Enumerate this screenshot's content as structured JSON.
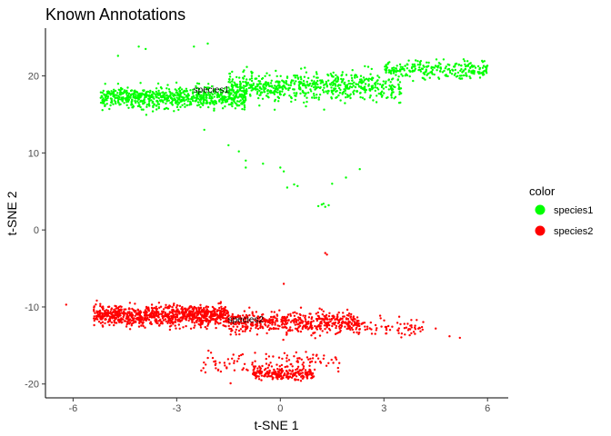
{
  "chart_data": {
    "type": "scatter",
    "title": "Known Annotations",
    "xlabel": "t-SNE 1",
    "ylabel": "t-SNE 2",
    "xlim": [
      -6.8,
      6.6
    ],
    "ylim": [
      -21.8,
      26.2
    ],
    "x_ticks": [
      -6,
      -3,
      0,
      3,
      6
    ],
    "y_ticks": [
      -20,
      -10,
      0,
      10,
      20
    ],
    "x_tick_labels": [
      "-6",
      "-3",
      "0",
      "3",
      "6"
    ],
    "y_tick_labels": [
      "-20",
      "-10",
      "0",
      "10",
      "20"
    ],
    "grid": false,
    "legend": {
      "title": "color",
      "position": "right",
      "entries": [
        {
          "label": "species1",
          "color": "#00ff00"
        },
        {
          "label": "species2",
          "color": "#ff0000"
        }
      ]
    },
    "annotations": [
      {
        "text": "species1",
        "x": -2.0,
        "y": 17.8
      },
      {
        "text": "species2",
        "x": -1.0,
        "y": -12.0
      }
    ],
    "series": [
      {
        "name": "species1",
        "color": "#00ff00",
        "clusters": [
          {
            "n": 700,
            "x_range": [
              -5.2,
              -1.0
            ],
            "y_center": 17.2,
            "y_spread": 1.0
          },
          {
            "n": 650,
            "x_range": [
              -1.5,
              3.5
            ],
            "y_center": 18.6,
            "y_spread": 1.3
          },
          {
            "n": 250,
            "x_range": [
              3.0,
              6.0
            ],
            "y_center": 20.9,
            "y_spread": 0.8
          }
        ],
        "points": [
          [
            -4.7,
            22.6
          ],
          [
            -4.1,
            23.8
          ],
          [
            -3.9,
            23.5
          ],
          [
            -2.1,
            24.2
          ],
          [
            -2.5,
            23.8
          ],
          [
            -2.2,
            13.0
          ],
          [
            -1.5,
            11.0
          ],
          [
            -1.2,
            10.2
          ],
          [
            -1.0,
            9.0
          ],
          [
            -1.0,
            8.1
          ],
          [
            -0.5,
            8.6
          ],
          [
            0.0,
            8.1
          ],
          [
            0.1,
            7.6
          ],
          [
            0.4,
            5.9
          ],
          [
            0.5,
            5.7
          ],
          [
            0.2,
            5.5
          ],
          [
            1.5,
            6.0
          ],
          [
            1.9,
            6.8
          ],
          [
            2.3,
            7.9
          ],
          [
            1.1,
            3.1
          ],
          [
            1.2,
            3.3
          ],
          [
            1.3,
            3.0
          ],
          [
            1.4,
            3.2
          ],
          [
            1.25,
            3.4
          ]
        ]
      },
      {
        "name": "species2",
        "color": "#ff0000",
        "clusters": [
          {
            "n": 900,
            "x_range": [
              -5.4,
              -1.5
            ],
            "y_center": -11.1,
            "y_spread": 0.9
          },
          {
            "n": 500,
            "x_range": [
              -1.5,
              2.3
            ],
            "y_center": -12.0,
            "y_spread": 1.0
          },
          {
            "n": 200,
            "x_range": [
              -0.8,
              1.0
            ],
            "y_center": -18.7,
            "y_spread": 0.5
          },
          {
            "n": 120,
            "x_range": [
              -2.3,
              1.8
            ],
            "y_center": -17.2,
            "y_spread": 1.0
          },
          {
            "n": 80,
            "x_range": [
              2.0,
              4.2
            ],
            "y_center": -12.6,
            "y_spread": 0.8
          }
        ],
        "points": [
          [
            -6.2,
            -9.7
          ],
          [
            5.2,
            -14.0
          ],
          [
            4.9,
            -13.8
          ],
          [
            4.5,
            -12.8
          ],
          [
            3.9,
            -13.5
          ],
          [
            0.1,
            -7.0
          ],
          [
            1.3,
            -3.0
          ],
          [
            1.35,
            -3.2
          ]
        ]
      }
    ]
  }
}
